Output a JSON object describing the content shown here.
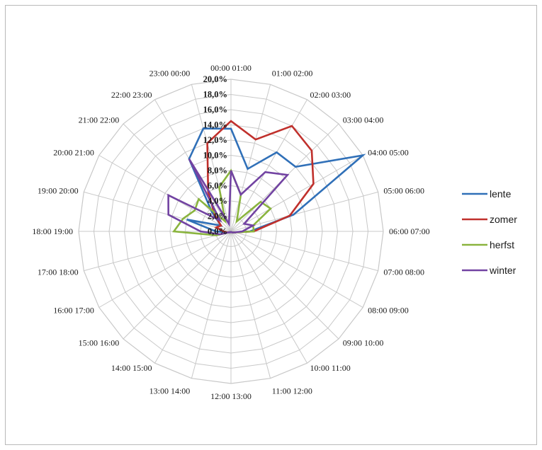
{
  "chart_data": {
    "type": "radar",
    "categories": [
      "00:00 01:00",
      "01:00 02:00",
      "02:00 03:00",
      "03:00 04:00",
      "04:00 05:00",
      "05:00 06:00",
      "06:00 07:00",
      "07:00 08:00",
      "08:00 09:00",
      "09:00 10:00",
      "10:00 11:00",
      "11:00 12:00",
      "12:00 13:00",
      "13:00 14:00",
      "14:00 15:00",
      "15:00 16:00",
      "16:00 17:00",
      "17:00 18:00",
      "18:00 19:00",
      "19:00 20:00",
      "20:00 21:00",
      "21:00 22:00",
      "22:00 23:00",
      "23:00 00:00"
    ],
    "tick_labels": [
      "0,0%",
      "2,0%",
      "4,0%",
      "6,0%",
      "8,0%",
      "10,0%",
      "12,0%",
      "14,0%",
      "16,0%",
      "18,0%",
      "20,0%"
    ],
    "rmin": 0,
    "rmax": 20,
    "rstep": 2,
    "grid": true,
    "legend_position": "right",
    "series": [
      {
        "name": "lente",
        "color": "#3070b8",
        "values": [
          13.5,
          8.5,
          12.0,
          12.0,
          20.0,
          8.5,
          2.5,
          0.5,
          0.3,
          0.2,
          0.1,
          0.1,
          0.1,
          0.1,
          0.1,
          0.2,
          0.2,
          0.5,
          2.0,
          6.0,
          1.5,
          3.5,
          11.0,
          14.0
        ]
      },
      {
        "name": "zomer",
        "color": "#c0302c",
        "values": [
          14.5,
          12.5,
          16.0,
          15.0,
          12.5,
          8.0,
          3.0,
          0.5,
          0.3,
          0.2,
          0.1,
          0.1,
          0.1,
          0.1,
          0.1,
          0.2,
          0.2,
          0.5,
          1.0,
          2.0,
          1.5,
          3.0,
          6.0,
          12.0
        ]
      },
      {
        "name": "herfst",
        "color": "#8ab43e",
        "values": [
          8.0,
          5.0,
          1.5,
          5.5,
          6.0,
          3.0,
          3.0,
          0.5,
          0.3,
          0.2,
          0.1,
          0.1,
          0.1,
          0.1,
          0.1,
          0.2,
          0.2,
          2.0,
          7.5,
          6.5,
          5.5,
          6.0,
          1.5,
          6.0
        ]
      },
      {
        "name": "winter",
        "color": "#7243a2",
        "values": [
          8.0,
          5.0,
          9.0,
          10.5,
          2.0,
          3.0,
          1.5,
          0.5,
          0.3,
          0.2,
          0.1,
          0.1,
          0.1,
          0.1,
          0.1,
          0.2,
          0.2,
          1.5,
          4.0,
          8.5,
          9.5,
          2.0,
          11.0,
          1.0
        ]
      }
    ]
  }
}
